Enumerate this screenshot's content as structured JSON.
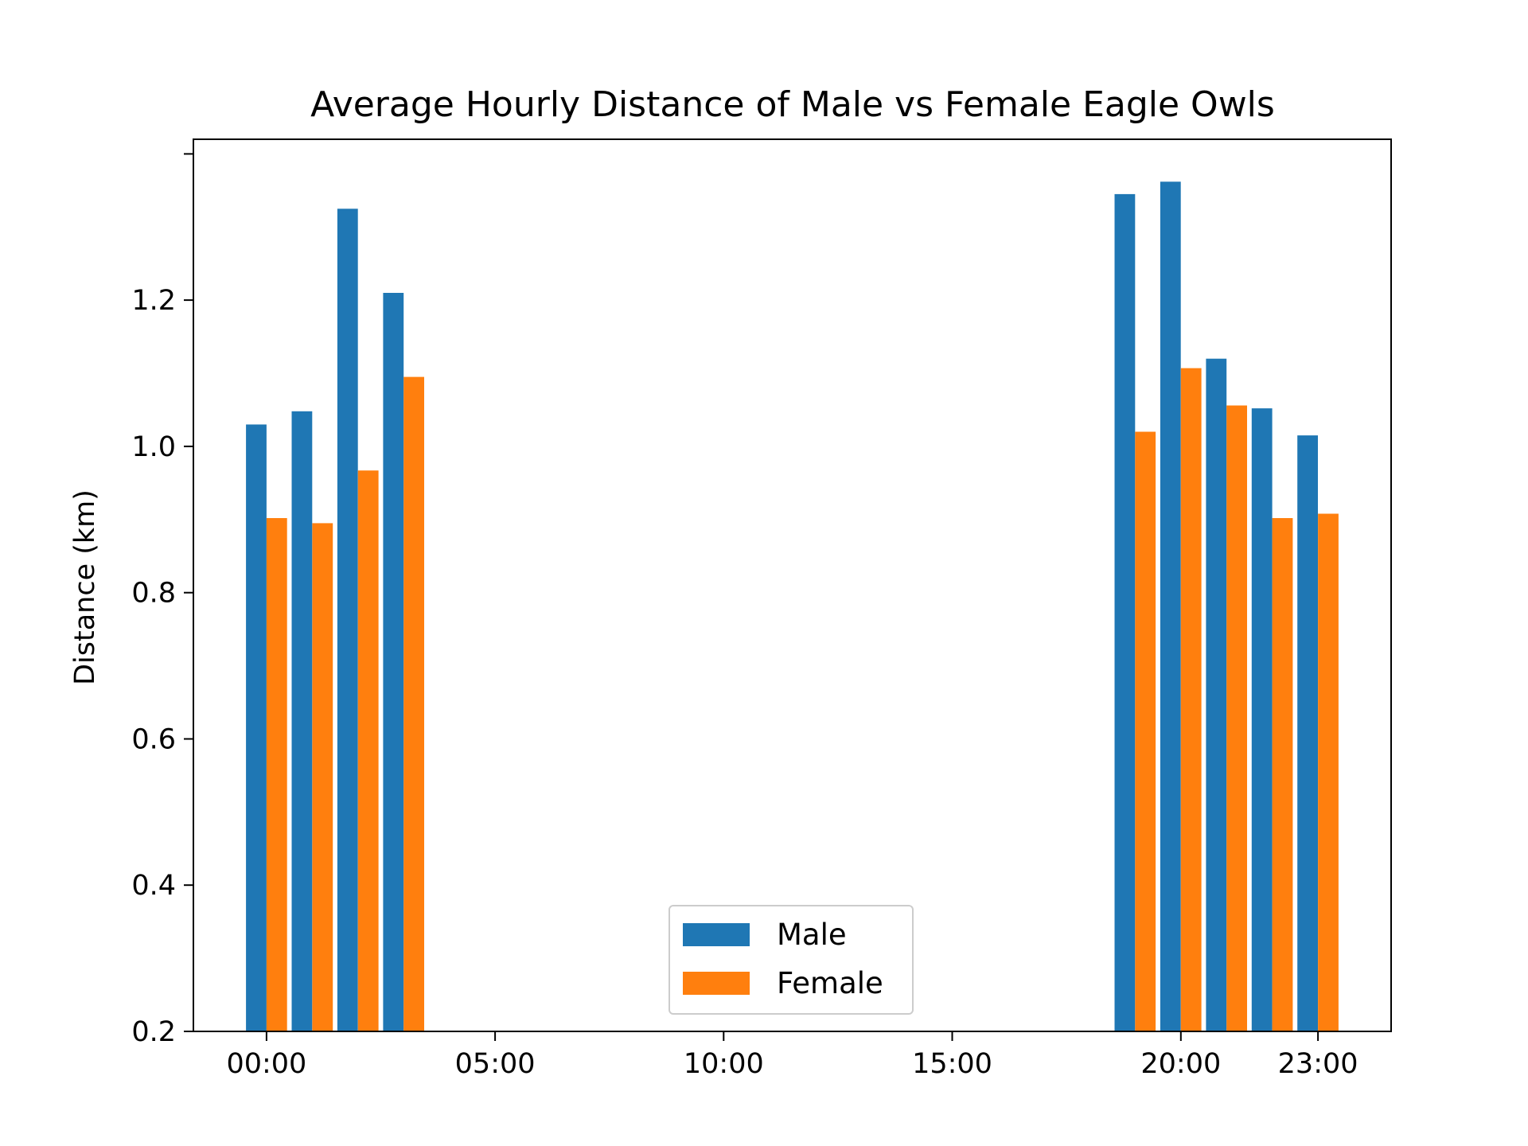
{
  "chart_data": {
    "type": "bar",
    "title": "Average Hourly Distance of Male vs Female Eagle Owls",
    "xlabel": "",
    "ylabel": "Distance (km)",
    "x_unit": "hour",
    "hours": [
      0,
      1,
      2,
      3,
      19,
      20,
      21,
      22,
      23
    ],
    "series": [
      {
        "name": "Male",
        "color": "#1f77b4",
        "values": [
          1.03,
          1.048,
          1.325,
          1.21,
          1.345,
          1.362,
          1.12,
          1.052,
          1.015
        ]
      },
      {
        "name": "Female",
        "color": "#ff7f0e",
        "values": [
          0.902,
          0.895,
          0.967,
          1.095,
          1.02,
          1.107,
          1.056,
          0.902,
          0.908
        ]
      }
    ],
    "ylim": [
      0.2,
      1.42
    ],
    "y_ticks": [
      0.2,
      0.4,
      0.6,
      0.8,
      1.0,
      1.2,
      1.4
    ],
    "y_tick_labels": [
      "0.2",
      "0.4",
      "0.6",
      "0.8",
      "1.0",
      "1.2",
      ""
    ],
    "xlim": [
      -1.6,
      24.6
    ],
    "x_ticks": [
      0,
      5,
      10,
      15,
      20,
      23
    ],
    "x_tick_labels": [
      "00:00",
      "05:00",
      "10:00",
      "15:00",
      "20:00",
      "23:00"
    ],
    "grid": false,
    "legend_position": "bottom-center"
  }
}
